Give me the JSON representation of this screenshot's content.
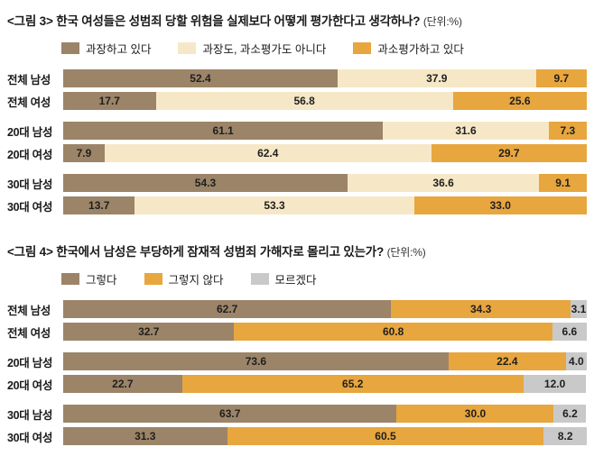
{
  "chart_data": [
    {
      "type": "bar",
      "stacked": true,
      "orientation": "horizontal",
      "tag": "<그림 3>",
      "title": "한국 여성들은 성범죄 당할 위험을 실제보다 어떻게 평가한다고 생각하나?",
      "unit": "(단위:%)",
      "legend_position": "top",
      "xlim": [
        0,
        100
      ],
      "value_decimals": 1,
      "categories": [
        "전체 남성",
        "전체 여성",
        "20대 남성",
        "20대 여성",
        "30대 남성",
        "30대 여성"
      ],
      "series": [
        {
          "name": "과장하고 있다",
          "color": "#9c8468",
          "values": [
            52.4,
            17.7,
            61.1,
            7.9,
            54.3,
            13.7
          ]
        },
        {
          "name": "과장도, 과소평가도 아니다",
          "color": "#f6e8c7",
          "values": [
            37.9,
            56.8,
            31.6,
            62.4,
            36.6,
            53.3
          ]
        },
        {
          "name": "과소평가하고 있다",
          "color": "#e8a63e",
          "values": [
            9.7,
            25.6,
            7.3,
            29.7,
            9.1,
            33.0
          ]
        }
      ]
    },
    {
      "type": "bar",
      "stacked": true,
      "orientation": "horizontal",
      "tag": "<그림 4>",
      "title": "한국에서 남성은 부당하게 잠재적 성범죄 가해자로 몰리고 있는가?",
      "unit": "(단위:%)",
      "legend_position": "top",
      "xlim": [
        0,
        100
      ],
      "value_decimals": 1,
      "categories": [
        "전체 남성",
        "전체 여성",
        "20대 남성",
        "20대 여성",
        "30대 남성",
        "30대 여성"
      ],
      "series": [
        {
          "name": "그렇다",
          "color": "#9c8468",
          "values": [
            62.7,
            32.7,
            73.6,
            22.7,
            63.7,
            31.3
          ]
        },
        {
          "name": "그렇지 않다",
          "color": "#e8a63e",
          "values": [
            34.3,
            60.8,
            22.4,
            65.2,
            30.0,
            60.5
          ]
        },
        {
          "name": "모르겠다",
          "color": "#c9c9c9",
          "values": [
            3.1,
            6.6,
            4.0,
            12.0,
            6.2,
            8.2
          ]
        }
      ]
    }
  ]
}
